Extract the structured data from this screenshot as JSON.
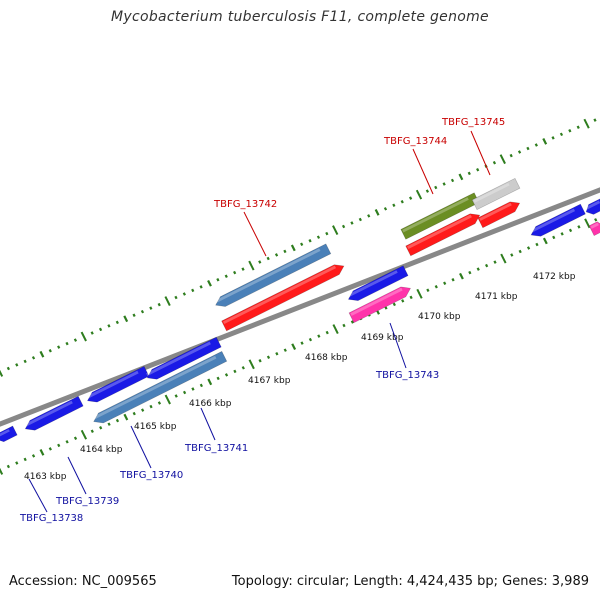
{
  "title": "Mycobacterium tuberculosis F11, complete genome",
  "footer": {
    "accession": "Accession: NC_009565",
    "summary": "Topology: circular; Length: 4,424,435 bp; Genes: 3,989"
  },
  "colors": {
    "backbone": "#888888",
    "tick": "#2e7d1e",
    "label_red": "#c80000",
    "label_blue": "#1010a0",
    "cds_blue": "#1a1ae6",
    "cds_steel": "#4a80b8",
    "cds_red": "#ff1a1a",
    "cds_pink": "#ff33aa",
    "cds_olive": "#6b8e23",
    "cds_grey": "#cccccc"
  },
  "scale_labels": [
    "4163 kbp",
    "4164 kbp",
    "4165 kbp",
    "4166 kbp",
    "4167 kbp",
    "4168 kbp",
    "4169 kbp",
    "4170 kbp",
    "4171 kbp",
    "4172 kbp"
  ],
  "genes": [
    {
      "id": "TBFG_13738",
      "color_key": "label_blue"
    },
    {
      "id": "TBFG_13739",
      "color_key": "label_blue"
    },
    {
      "id": "TBFG_13740",
      "color_key": "label_blue"
    },
    {
      "id": "TBFG_13741",
      "color_key": "label_blue"
    },
    {
      "id": "TBFG_13742",
      "color_key": "label_red"
    },
    {
      "id": "TBFG_13743",
      "color_key": "label_blue"
    },
    {
      "id": "TBFG_13744",
      "color_key": "label_red"
    },
    {
      "id": "TBFG_13745",
      "color_key": "label_red"
    }
  ]
}
